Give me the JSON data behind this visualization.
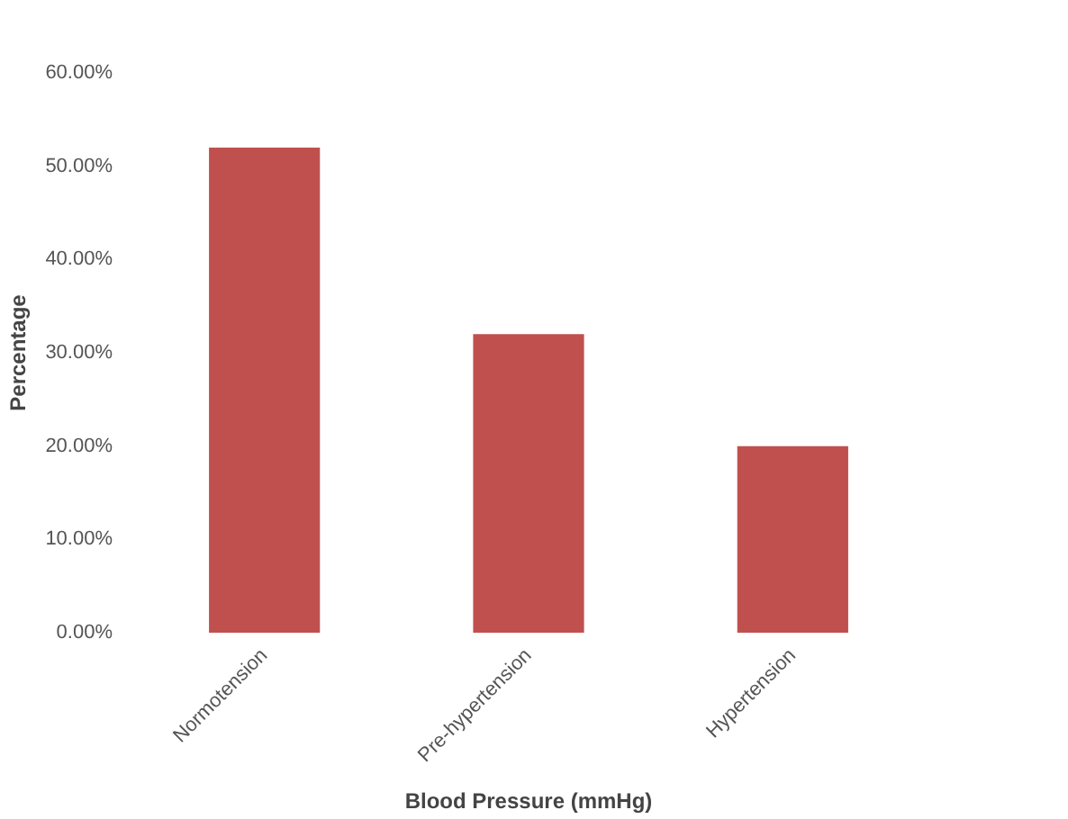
{
  "chart_data": {
    "type": "bar",
    "xlabel": "Blood Pressure (mmHg)",
    "ylabel": "Percentage",
    "categories": [
      "Normotension",
      "Pre-hypertension",
      "Hypertension"
    ],
    "values": [
      52,
      32,
      20
    ],
    "color": "#c0504d",
    "ylim": [
      0,
      60
    ],
    "yticks": [
      {
        "value": 0,
        "label": "0.00%"
      },
      {
        "value": 10,
        "label": "10.00%"
      },
      {
        "value": 20,
        "label": "20.00%"
      },
      {
        "value": 30,
        "label": "30.00%"
      },
      {
        "value": 40,
        "label": "40.00%"
      },
      {
        "value": 50,
        "label": "50.00%"
      },
      {
        "value": 60,
        "label": "60.00%"
      }
    ],
    "grid": false
  }
}
